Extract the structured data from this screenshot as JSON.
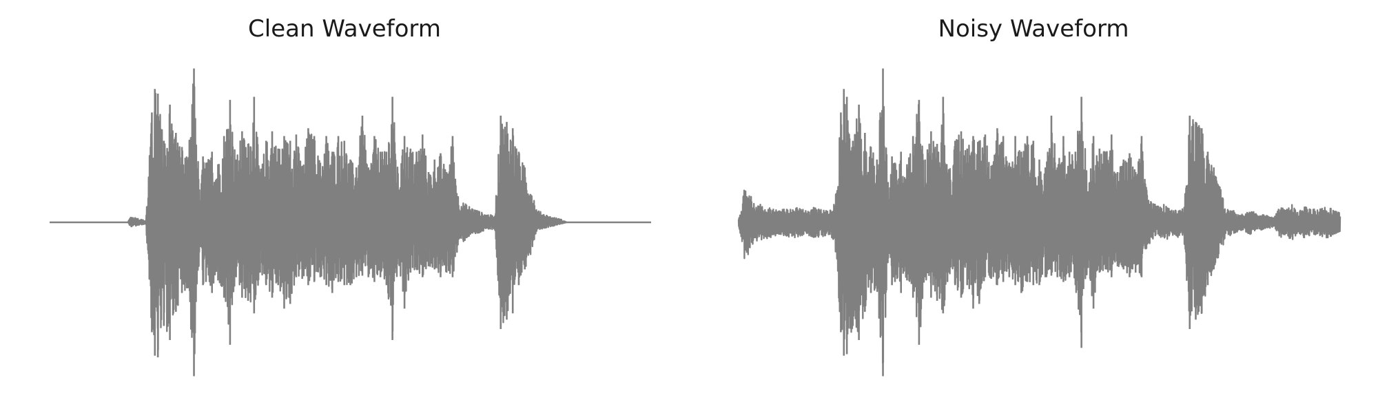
{
  "chart_data": [
    {
      "type": "line",
      "title": "Clean Waveform",
      "xlabel": "",
      "ylabel": "",
      "axes_visible": false,
      "grid": false,
      "line_color": "#808080",
      "x_range": [
        0,
        1
      ],
      "ylim": [
        -1,
        1
      ],
      "envelope": {
        "x": [
          0.0,
          0.13,
          0.135,
          0.16,
          0.17,
          0.175,
          0.18,
          0.19,
          0.2,
          0.21,
          0.22,
          0.23,
          0.24,
          0.25,
          0.255,
          0.26,
          0.27,
          0.28,
          0.29,
          0.3,
          0.31,
          0.32,
          0.33,
          0.34,
          0.35,
          0.36,
          0.37,
          0.38,
          0.39,
          0.4,
          0.41,
          0.42,
          0.43,
          0.44,
          0.45,
          0.46,
          0.47,
          0.48,
          0.49,
          0.5,
          0.51,
          0.52,
          0.53,
          0.54,
          0.55,
          0.56,
          0.57,
          0.58,
          0.59,
          0.6,
          0.61,
          0.62,
          0.63,
          0.64,
          0.65,
          0.66,
          0.67,
          0.68,
          0.69,
          0.7,
          0.71,
          0.72,
          0.73,
          0.74,
          0.75,
          0.76,
          0.77,
          0.78,
          0.79,
          0.8,
          0.81,
          0.82,
          0.83,
          0.84,
          0.85,
          0.86,
          0.87,
          0.88,
          0.89,
          0.9,
          0.91,
          0.92,
          0.93,
          0.94,
          1.0
        ],
        "upper": [
          0.0,
          0.0,
          0.04,
          0.01,
          0.7,
          0.85,
          0.82,
          0.52,
          0.75,
          0.57,
          0.48,
          0.4,
          0.98,
          0.15,
          0.42,
          0.38,
          0.45,
          0.37,
          0.55,
          0.78,
          0.4,
          0.58,
          0.5,
          0.8,
          0.32,
          0.52,
          0.58,
          0.47,
          0.55,
          0.52,
          0.56,
          0.36,
          0.6,
          0.55,
          0.38,
          0.55,
          0.45,
          0.55,
          0.52,
          0.4,
          0.35,
          0.68,
          0.35,
          0.55,
          0.45,
          0.45,
          0.8,
          0.28,
          0.55,
          0.47,
          0.45,
          0.56,
          0.32,
          0.4,
          0.44,
          0.32,
          0.55,
          0.15,
          0.12,
          0.1,
          0.08,
          0.06,
          0.05,
          0.04,
          0.68,
          0.64,
          0.6,
          0.45,
          0.35,
          0.25,
          0.08,
          0.06,
          0.04,
          0.03,
          0.02,
          0.0,
          0.0,
          0.0,
          0.0,
          0.0,
          0.0,
          0.0,
          0.0,
          0.0,
          0.0
        ],
        "lower": [
          0.0,
          0.0,
          -0.03,
          -0.01,
          -0.7,
          -0.85,
          -0.86,
          -0.66,
          -0.75,
          -0.57,
          -0.45,
          -0.42,
          -0.98,
          -0.15,
          -0.4,
          -0.38,
          -0.45,
          -0.37,
          -0.48,
          -0.78,
          -0.35,
          -0.48,
          -0.5,
          -0.58,
          -0.32,
          -0.4,
          -0.48,
          -0.4,
          -0.55,
          -0.52,
          -0.35,
          -0.36,
          -0.4,
          -0.38,
          -0.35,
          -0.4,
          -0.45,
          -0.38,
          -0.4,
          -0.4,
          -0.35,
          -0.34,
          -0.35,
          -0.38,
          -0.35,
          -0.4,
          -0.75,
          -0.28,
          -0.55,
          -0.32,
          -0.3,
          -0.35,
          -0.28,
          -0.3,
          -0.35,
          -0.32,
          -0.35,
          -0.15,
          -0.12,
          -0.08,
          -0.08,
          -0.06,
          -0.05,
          -0.04,
          -0.68,
          -0.62,
          -0.58,
          -0.4,
          -0.3,
          -0.2,
          -0.05,
          -0.04,
          -0.03,
          -0.02,
          -0.01,
          0.0,
          0.0,
          0.0,
          0.0,
          0.0,
          0.0,
          0.0,
          0.0,
          0.0,
          0.0
        ]
      }
    },
    {
      "type": "line",
      "title": "Noisy Waveform",
      "xlabel": "",
      "ylabel": "",
      "axes_visible": false,
      "grid": false,
      "line_color": "#808080",
      "x_range": [
        0,
        1
      ],
      "ylim": [
        -1,
        1
      ],
      "envelope": {
        "x": [
          0.0,
          0.01,
          0.03,
          0.05,
          0.07,
          0.09,
          0.11,
          0.13,
          0.15,
          0.16,
          0.17,
          0.175,
          0.18,
          0.19,
          0.2,
          0.21,
          0.22,
          0.23,
          0.24,
          0.25,
          0.255,
          0.26,
          0.27,
          0.28,
          0.29,
          0.3,
          0.31,
          0.32,
          0.33,
          0.34,
          0.35,
          0.36,
          0.37,
          0.38,
          0.39,
          0.4,
          0.41,
          0.42,
          0.43,
          0.44,
          0.45,
          0.46,
          0.47,
          0.48,
          0.49,
          0.5,
          0.51,
          0.52,
          0.53,
          0.54,
          0.55,
          0.56,
          0.57,
          0.58,
          0.59,
          0.6,
          0.61,
          0.62,
          0.63,
          0.64,
          0.65,
          0.66,
          0.67,
          0.68,
          0.69,
          0.7,
          0.71,
          0.72,
          0.73,
          0.74,
          0.75,
          0.76,
          0.77,
          0.78,
          0.79,
          0.8,
          0.81,
          0.82,
          0.83,
          0.84,
          0.85,
          0.86,
          0.87,
          0.88,
          0.89,
          0.9,
          0.91,
          0.92,
          0.93,
          0.94,
          0.96,
          0.98,
          1.0
        ],
        "upper": [
          0.02,
          0.22,
          0.12,
          0.1,
          0.08,
          0.1,
          0.08,
          0.1,
          0.08,
          0.12,
          0.7,
          0.85,
          0.8,
          0.52,
          0.75,
          0.57,
          0.48,
          0.4,
          0.98,
          0.15,
          0.42,
          0.38,
          0.45,
          0.37,
          0.55,
          0.78,
          0.4,
          0.58,
          0.5,
          0.8,
          0.32,
          0.52,
          0.58,
          0.47,
          0.55,
          0.52,
          0.56,
          0.36,
          0.6,
          0.55,
          0.38,
          0.55,
          0.45,
          0.55,
          0.52,
          0.4,
          0.35,
          0.68,
          0.35,
          0.55,
          0.45,
          0.45,
          0.8,
          0.28,
          0.55,
          0.47,
          0.45,
          0.56,
          0.32,
          0.4,
          0.44,
          0.32,
          0.55,
          0.15,
          0.12,
          0.1,
          0.12,
          0.08,
          0.1,
          0.08,
          0.68,
          0.64,
          0.6,
          0.45,
          0.35,
          0.25,
          0.1,
          0.08,
          0.06,
          0.05,
          0.08,
          0.06,
          0.05,
          0.04,
          0.03,
          0.1,
          0.08,
          0.12,
          0.06,
          0.1,
          0.08,
          0.1,
          0.06
        ],
        "lower": [
          -0.02,
          -0.25,
          -0.12,
          -0.1,
          -0.08,
          -0.1,
          -0.08,
          -0.1,
          -0.08,
          -0.12,
          -0.7,
          -0.85,
          -0.84,
          -0.66,
          -0.75,
          -0.57,
          -0.45,
          -0.42,
          -0.98,
          -0.15,
          -0.4,
          -0.38,
          -0.45,
          -0.37,
          -0.48,
          -0.78,
          -0.35,
          -0.48,
          -0.5,
          -0.58,
          -0.32,
          -0.4,
          -0.48,
          -0.4,
          -0.55,
          -0.52,
          -0.35,
          -0.36,
          -0.4,
          -0.38,
          -0.35,
          -0.4,
          -0.45,
          -0.38,
          -0.4,
          -0.4,
          -0.35,
          -0.34,
          -0.35,
          -0.38,
          -0.35,
          -0.4,
          -0.8,
          -0.28,
          -0.55,
          -0.32,
          -0.3,
          -0.35,
          -0.28,
          -0.3,
          -0.35,
          -0.32,
          -0.35,
          -0.15,
          -0.12,
          -0.1,
          -0.12,
          -0.08,
          -0.1,
          -0.08,
          -0.68,
          -0.62,
          -0.58,
          -0.4,
          -0.3,
          -0.2,
          -0.1,
          -0.08,
          -0.06,
          -0.05,
          -0.08,
          -0.06,
          -0.05,
          -0.04,
          -0.03,
          -0.1,
          -0.08,
          -0.12,
          -0.06,
          -0.1,
          -0.08,
          -0.1,
          -0.06
        ]
      }
    }
  ]
}
